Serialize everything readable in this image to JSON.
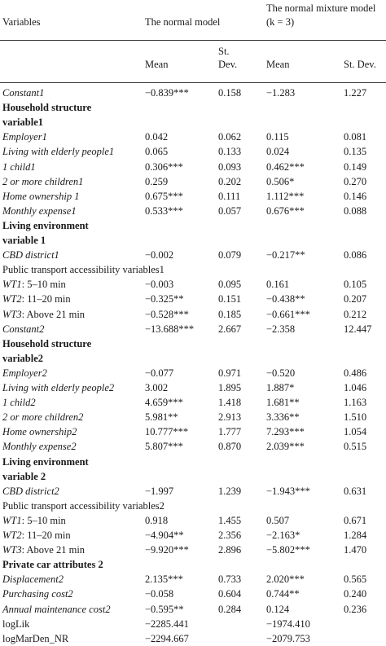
{
  "headers": {
    "variables": "Variables",
    "normal_model": "The normal model",
    "mixture_model_line1": "The normal mixture model",
    "mixture_model_line2": "(k = 3)",
    "mean": "Mean",
    "stdev_line1": "St.",
    "stdev_line2": "Dev.",
    "mean2": "Mean",
    "stdev2": "St. Dev."
  },
  "rows": [
    {
      "kind": "italic",
      "label": "Constant1",
      "m1": "−0.839***",
      "s1": "0.158",
      "m2": "−1.283",
      "s2": "1.227"
    },
    {
      "kind": "section",
      "label": "Household structure"
    },
    {
      "kind": "section",
      "label": "variable1"
    },
    {
      "kind": "italic",
      "label": "Employer1",
      "m1": "0.042",
      "s1": "0.062",
      "m2": "0.115",
      "s2": "0.081"
    },
    {
      "kind": "italic",
      "label": "Living with elderly people1",
      "m1": "0.065",
      "s1": "0.133",
      "m2": "0.024",
      "s2": "0.135"
    },
    {
      "kind": "italic",
      "label": "1 child1",
      "m1": "0.306***",
      "s1": "0.093",
      "m2": "0.462***",
      "s2": "0.149"
    },
    {
      "kind": "italic",
      "label": "2 or more children1",
      "m1": "0.259",
      "s1": "0.202",
      "m2": "0.506*",
      "s2": "0.270"
    },
    {
      "kind": "italic",
      "label": "Home ownership 1",
      "m1": "0.675***",
      "s1": "0.111",
      "m2": "1.112***",
      "s2": "0.146"
    },
    {
      "kind": "italic",
      "label": "Monthly expense1",
      "m1": "0.533***",
      "s1": "0.057",
      "m2": "0.676***",
      "s2": "0.088"
    },
    {
      "kind": "section",
      "label": "Living environment"
    },
    {
      "kind": "section",
      "label": "variable 1"
    },
    {
      "kind": "italic",
      "label": "CBD district1",
      "m1": "−0.002",
      "s1": "0.079",
      "m2": "−0.217**",
      "s2": "0.086"
    },
    {
      "kind": "plain",
      "label": "Public transport accessibility variables1"
    },
    {
      "kind": "wt",
      "label_i": "WT1",
      "label_r": ": 5–10 min",
      "m1": "−0.003",
      "s1": "0.095",
      "m2": "0.161",
      "s2": "0.105"
    },
    {
      "kind": "wt",
      "label_i": "WT2",
      "label_r": ": 11–20 min",
      "m1": "−0.325**",
      "s1": "0.151",
      "m2": "−0.438**",
      "s2": "0.207"
    },
    {
      "kind": "wt",
      "label_i": "WT3",
      "label_r": ": Above 21 min",
      "m1": "−0.528***",
      "s1": "0.185",
      "m2": "−0.661***",
      "s2": "0.212"
    },
    {
      "kind": "italic",
      "label": "Constant2",
      "m1": "−13.688***",
      "s1": "2.667",
      "m2": "−2.358",
      "s2": "12.447"
    },
    {
      "kind": "section",
      "label": "Household structure"
    },
    {
      "kind": "section",
      "label": "variable2"
    },
    {
      "kind": "italic",
      "label": "Employer2",
      "m1": "−0.077",
      "s1": "0.971",
      "m2": "−0.520",
      "s2": "0.486"
    },
    {
      "kind": "italic",
      "label": "Living with elderly people2",
      "m1": "3.002",
      "s1": "1.895",
      "m2": "1.887*",
      "s2": "1.046"
    },
    {
      "kind": "italic",
      "label": "1 child2",
      "m1": "4.659***",
      "s1": "1.418",
      "m2": "1.681**",
      "s2": "1.163"
    },
    {
      "kind": "italic",
      "label": "2 or more children2",
      "m1": "5.981**",
      "s1": "2.913",
      "m2": "3.336**",
      "s2": "1.510"
    },
    {
      "kind": "italic",
      "label": "Home ownership2",
      "m1": "10.777***",
      "s1": "1.777",
      "m2": "7.293***",
      "s2": "1.054"
    },
    {
      "kind": "italic",
      "label": "Monthly expense2",
      "m1": "5.807***",
      "s1": "0.870",
      "m2": "2.039***",
      "s2": "0.515"
    },
    {
      "kind": "section",
      "label": "Living environment"
    },
    {
      "kind": "section",
      "label": "variable 2"
    },
    {
      "kind": "italic",
      "label": "CBD district2",
      "m1": "−1.997",
      "s1": "1.239",
      "m2": "−1.943***",
      "s2": "0.631"
    },
    {
      "kind": "plain",
      "label": "Public transport accessibility variables2"
    },
    {
      "kind": "wt",
      "label_i": "WT1",
      "label_r": ": 5–10 min",
      "m1": "0.918",
      "s1": "1.455",
      "m2": "0.507",
      "s2": "0.671"
    },
    {
      "kind": "wt",
      "label_i": "WT2",
      "label_r": ": 11–20 min",
      "m1": "−4.904**",
      "s1": "2.356",
      "m2": "−2.163*",
      "s2": "1.284"
    },
    {
      "kind": "wt",
      "label_i": "WT3",
      "label_r": ": Above 21 min",
      "m1": "−9.920***",
      "s1": "2.896",
      "m2": "−5.802***",
      "s2": "1.470"
    },
    {
      "kind": "section",
      "label": "Private car attributes 2"
    },
    {
      "kind": "italic",
      "label": "Displacement2",
      "m1": "2.135***",
      "s1": "0.733",
      "m2": "2.020***",
      "s2": "0.565"
    },
    {
      "kind": "italic",
      "label": "Purchasing cost2",
      "m1": "−0.058",
      "s1": "0.604",
      "m2": "0.744**",
      "s2": "0.240"
    },
    {
      "kind": "italic",
      "label": "Annual maintenance cost2",
      "m1": "−0.595**",
      "s1": "0.284",
      "m2": "0.124",
      "s2": "0.236"
    },
    {
      "kind": "plain",
      "label": "logLik",
      "m1": "−2285.441",
      "s1": "",
      "m2": "−1974.410",
      "s2": ""
    },
    {
      "kind": "plain",
      "label": "logMarDen_NR",
      "m1": "−2294.667",
      "s1": "",
      "m2": "−2079.753",
      "s2": ""
    }
  ]
}
